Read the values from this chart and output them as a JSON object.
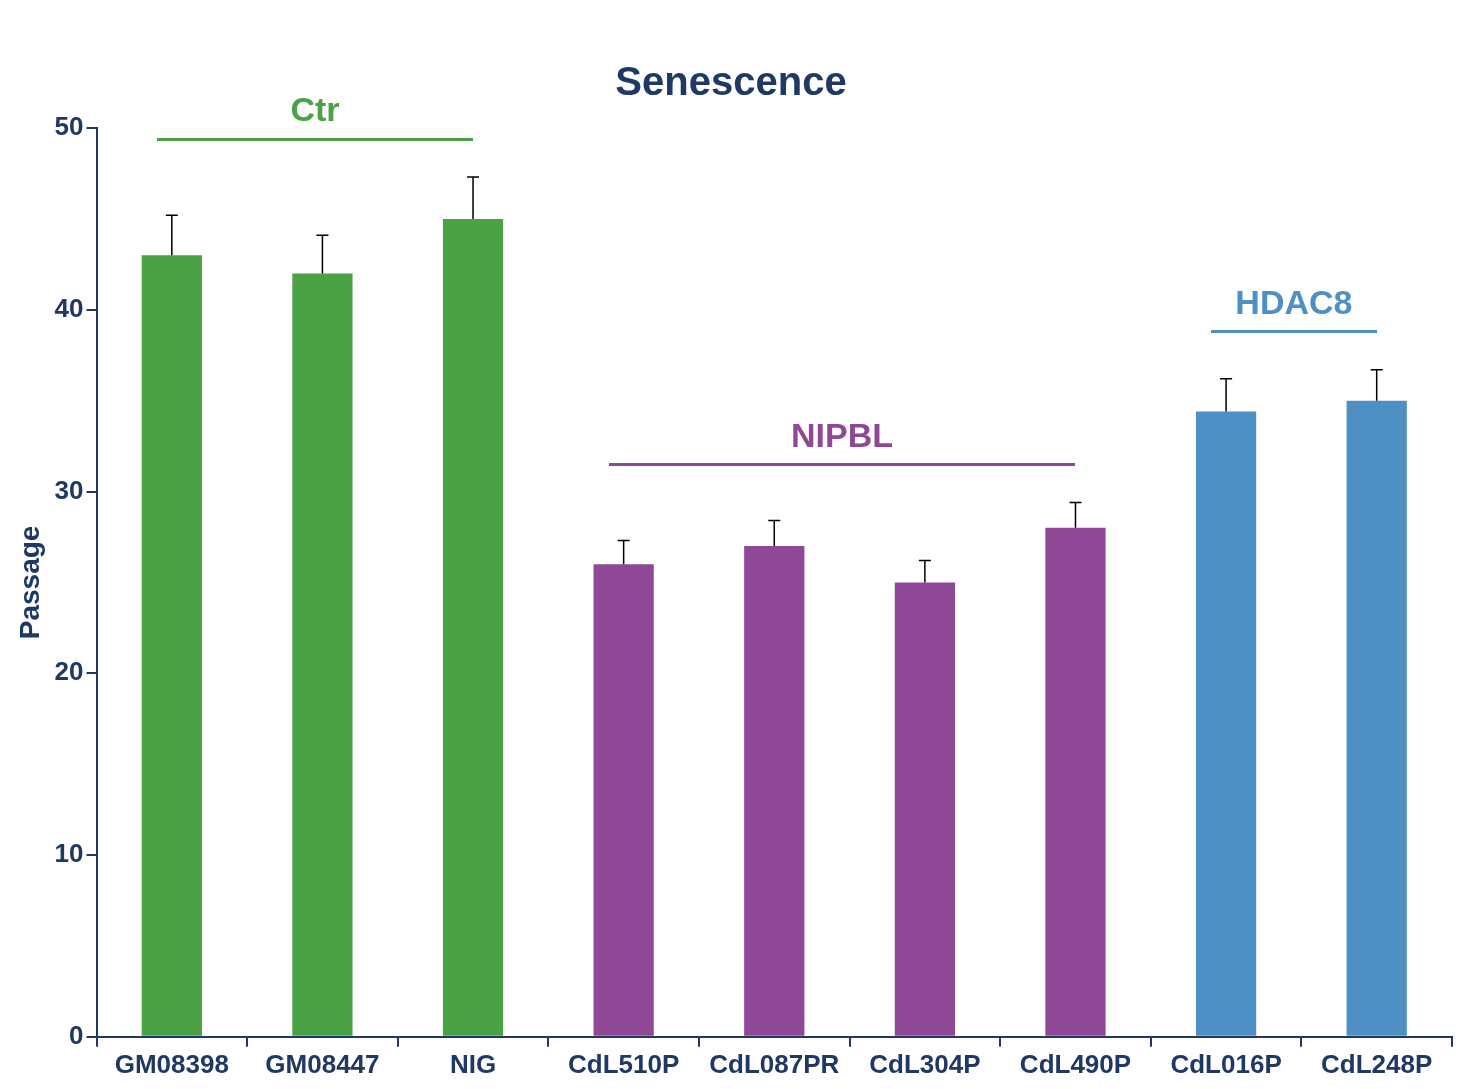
{
  "chart_data": {
    "type": "bar",
    "title": "Senescence",
    "ylabel": "Passage",
    "categories": [
      "GM08398",
      "GM08447",
      "NIG",
      "CdL510P",
      "CdL087PR",
      "CdL304P",
      "CdL490P",
      "CdL016P",
      "CdL248P"
    ],
    "values": [
      43,
      42,
      45,
      26,
      27,
      25,
      28,
      34.4,
      35
    ],
    "errors": [
      [
        43,
        45.2
      ],
      [
        42,
        44.1
      ],
      [
        45,
        47.3
      ],
      [
        26,
        27.3
      ],
      [
        27,
        28.4
      ],
      [
        25,
        26.2
      ],
      [
        28,
        29.4
      ],
      [
        34.4,
        36.2
      ],
      [
        35,
        36.7
      ]
    ],
    "colors": [
      "#4aa245",
      "#4aa245",
      "#4aa245",
      "#8e4896",
      "#8e4896",
      "#8e4896",
      "#8e4896",
      "#4f90c4",
      "#4f90c4"
    ],
    "annotations": [
      "Ctr",
      "NIPBL",
      "HDAC8"
    ],
    "ylim": [
      0,
      50
    ],
    "yticks": [
      0,
      10,
      20,
      30,
      40,
      50
    ],
    "grid": false,
    "legend": false
  }
}
